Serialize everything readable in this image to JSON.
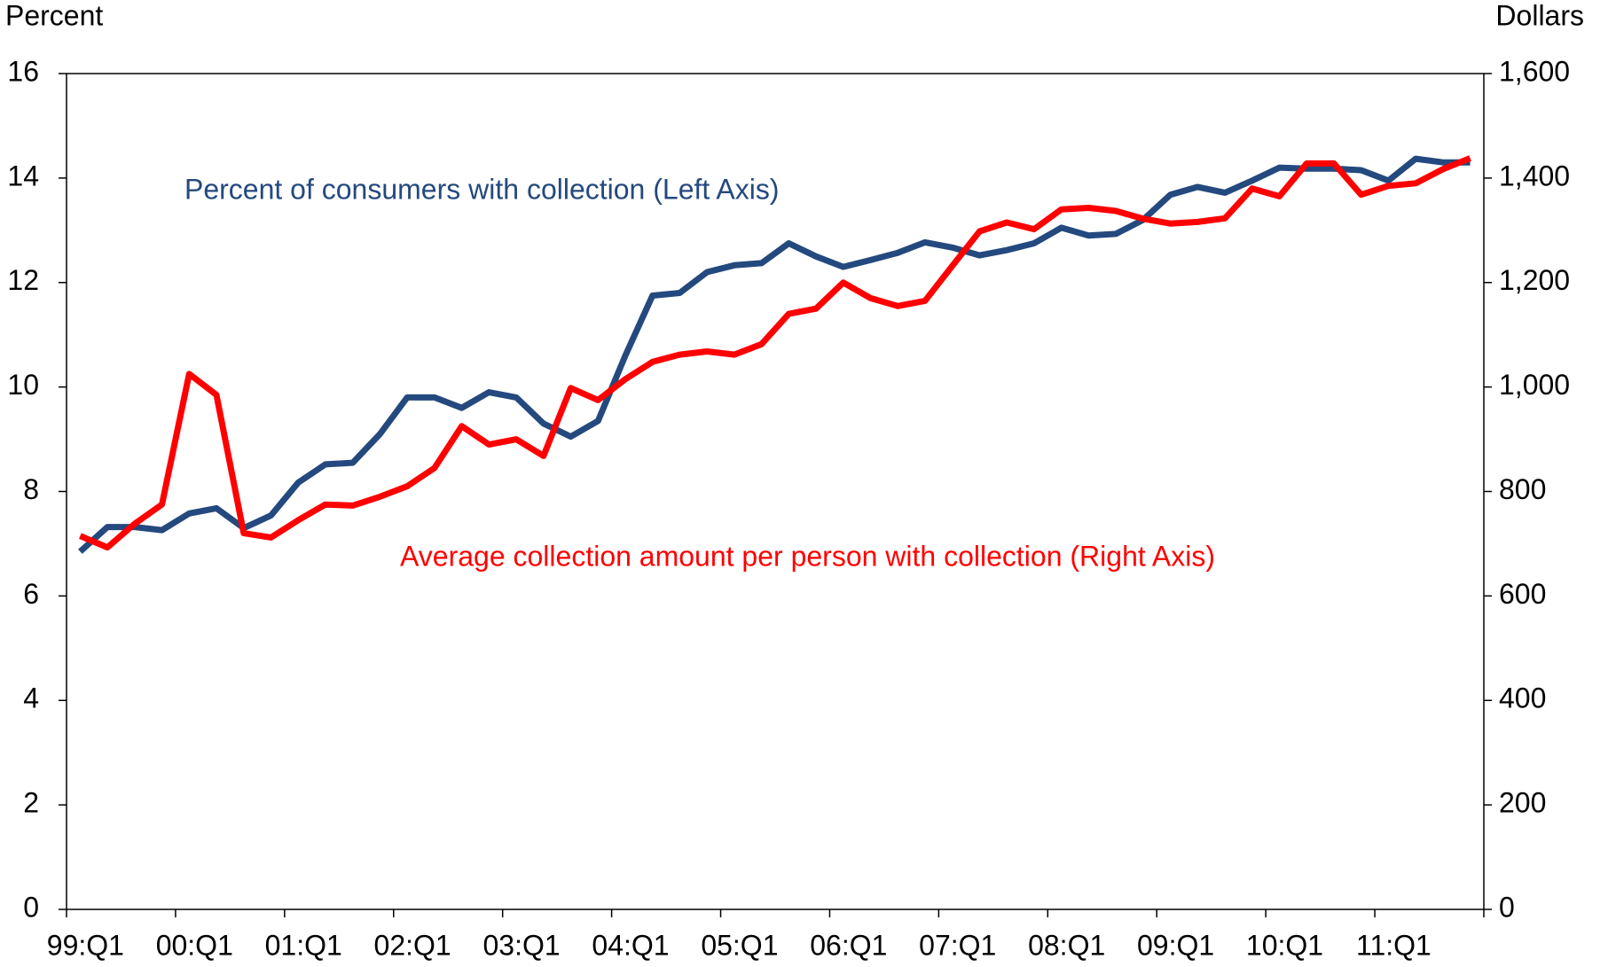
{
  "chart_data": {
    "type": "line",
    "y_label": "Percent",
    "y2_label": "Dollars",
    "categories": [
      "99:Q1",
      null,
      null,
      null,
      "00:Q1",
      null,
      null,
      null,
      "01:Q1",
      null,
      null,
      null,
      "02:Q1",
      null,
      null,
      null,
      "03:Q1",
      null,
      null,
      null,
      "04:Q1",
      null,
      null,
      null,
      "05:Q1",
      null,
      null,
      null,
      "06:Q1",
      null,
      null,
      null,
      "07:Q1",
      null,
      null,
      null,
      "08:Q1",
      null,
      null,
      null,
      "09:Q1",
      null,
      null,
      null,
      "10:Q1",
      null,
      null,
      null,
      "11:Q1",
      null,
      null,
      null
    ],
    "series": [
      {
        "name": "Percent of consumers with collection (Left Axis)",
        "color": "#24497e",
        "axis": "y",
        "values": [
          6.85,
          7.32,
          7.32,
          7.26,
          7.58,
          7.68,
          7.3,
          7.54,
          8.17,
          8.52,
          8.55,
          9.1,
          9.8,
          9.8,
          9.6,
          9.9,
          9.8,
          9.3,
          9.05,
          9.35,
          10.6,
          11.75,
          11.8,
          12.2,
          12.33,
          12.37,
          12.75,
          12.5,
          12.3,
          12.43,
          12.57,
          12.77,
          12.67,
          12.52,
          12.62,
          12.75,
          13.05,
          12.9,
          12.93,
          13.2,
          13.68,
          13.83,
          13.72,
          13.95,
          14.2,
          14.18,
          14.18,
          14.15,
          13.95,
          14.37,
          14.3,
          14.3
        ]
      },
      {
        "name": "Average collection amount per person with collection (Right Axis)",
        "color": "#ff0000",
        "axis": "y2",
        "values": [
          715,
          693,
          738,
          775,
          1025,
          985,
          720,
          712,
          745,
          775,
          773,
          790,
          810,
          845,
          925,
          890,
          900,
          868,
          998,
          975,
          1015,
          1048,
          1062,
          1068,
          1062,
          1082,
          1140,
          1150,
          1200,
          1170,
          1155,
          1165,
          1232,
          1298,
          1315,
          1302,
          1340,
          1343,
          1337,
          1322,
          1313,
          1316,
          1323,
          1380,
          1365,
          1428,
          1428,
          1368,
          1385,
          1390,
          1417,
          1438
        ]
      }
    ],
    "ylim": [
      0,
      16
    ],
    "yticks": [
      0,
      2,
      4,
      6,
      8,
      10,
      12,
      14,
      16
    ],
    "y2lim": [
      0,
      1600
    ],
    "y2ticks": [
      0,
      200,
      400,
      600,
      800,
      {
        "value": 1000,
        "label": "1,000"
      },
      {
        "value": 1200,
        "label": "1,200"
      },
      {
        "value": 1400,
        "label": "1,400"
      },
      {
        "value": 1600,
        "label": "1,600"
      }
    ],
    "grid": false
  }
}
